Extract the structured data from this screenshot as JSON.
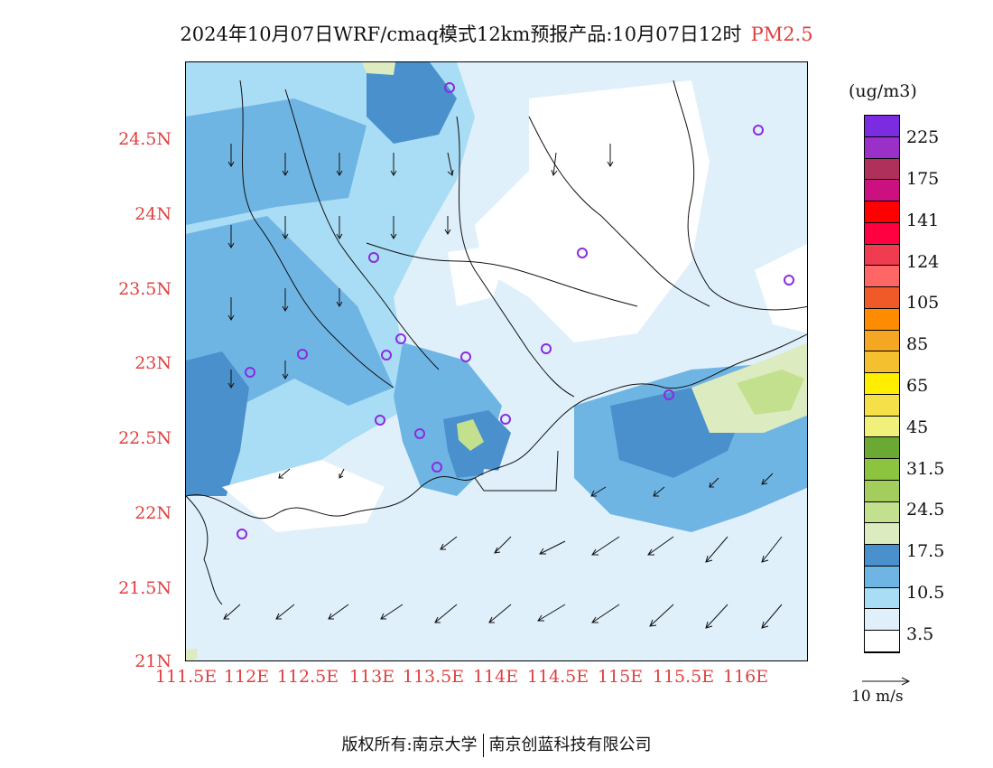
{
  "title": {
    "main": "2024年10月07日WRF/cmaq模式12km预报产品:10月07日12时",
    "pollutant": "PM2.5"
  },
  "axes": {
    "lat_labels": [
      "24.5N",
      "24N",
      "23.5N",
      "23N",
      "22.5N",
      "22N",
      "21.5N",
      "21N"
    ],
    "lon_labels": [
      "111.5E",
      "112E",
      "112.5E",
      "113E",
      "113.5E",
      "114E",
      "114.5E",
      "115E",
      "115.5E",
      "116E"
    ]
  },
  "legend": {
    "unit": "(ug/m3)",
    "colors": [
      "#ffffff",
      "#dff0fb",
      "#a9dcf5",
      "#6fb5e4",
      "#4a90cc",
      "#dcebc0",
      "#c3e08f",
      "#a3cd5c",
      "#8cc440",
      "#6aaa32",
      "#f0f07a",
      "#f5e04a",
      "#ffee00",
      "#f5c030",
      "#f5a623",
      "#ff8c00",
      "#f05a28",
      "#ff6666",
      "#f03c50",
      "#ff0040",
      "#ff0000",
      "#cc1080",
      "#b0305c",
      "#9a30c8",
      "#7b2be0"
    ],
    "labels": [
      "3.5",
      "10.5",
      "17.5",
      "24.5",
      "31.5",
      "45",
      "65",
      "85",
      "105",
      "124",
      "141",
      "175",
      "225"
    ]
  },
  "wind_reference": {
    "label": "10 m/s"
  },
  "footer": {
    "left": "版权所有:南京大学",
    "right": "南京创蓝科技有限公司"
  }
}
